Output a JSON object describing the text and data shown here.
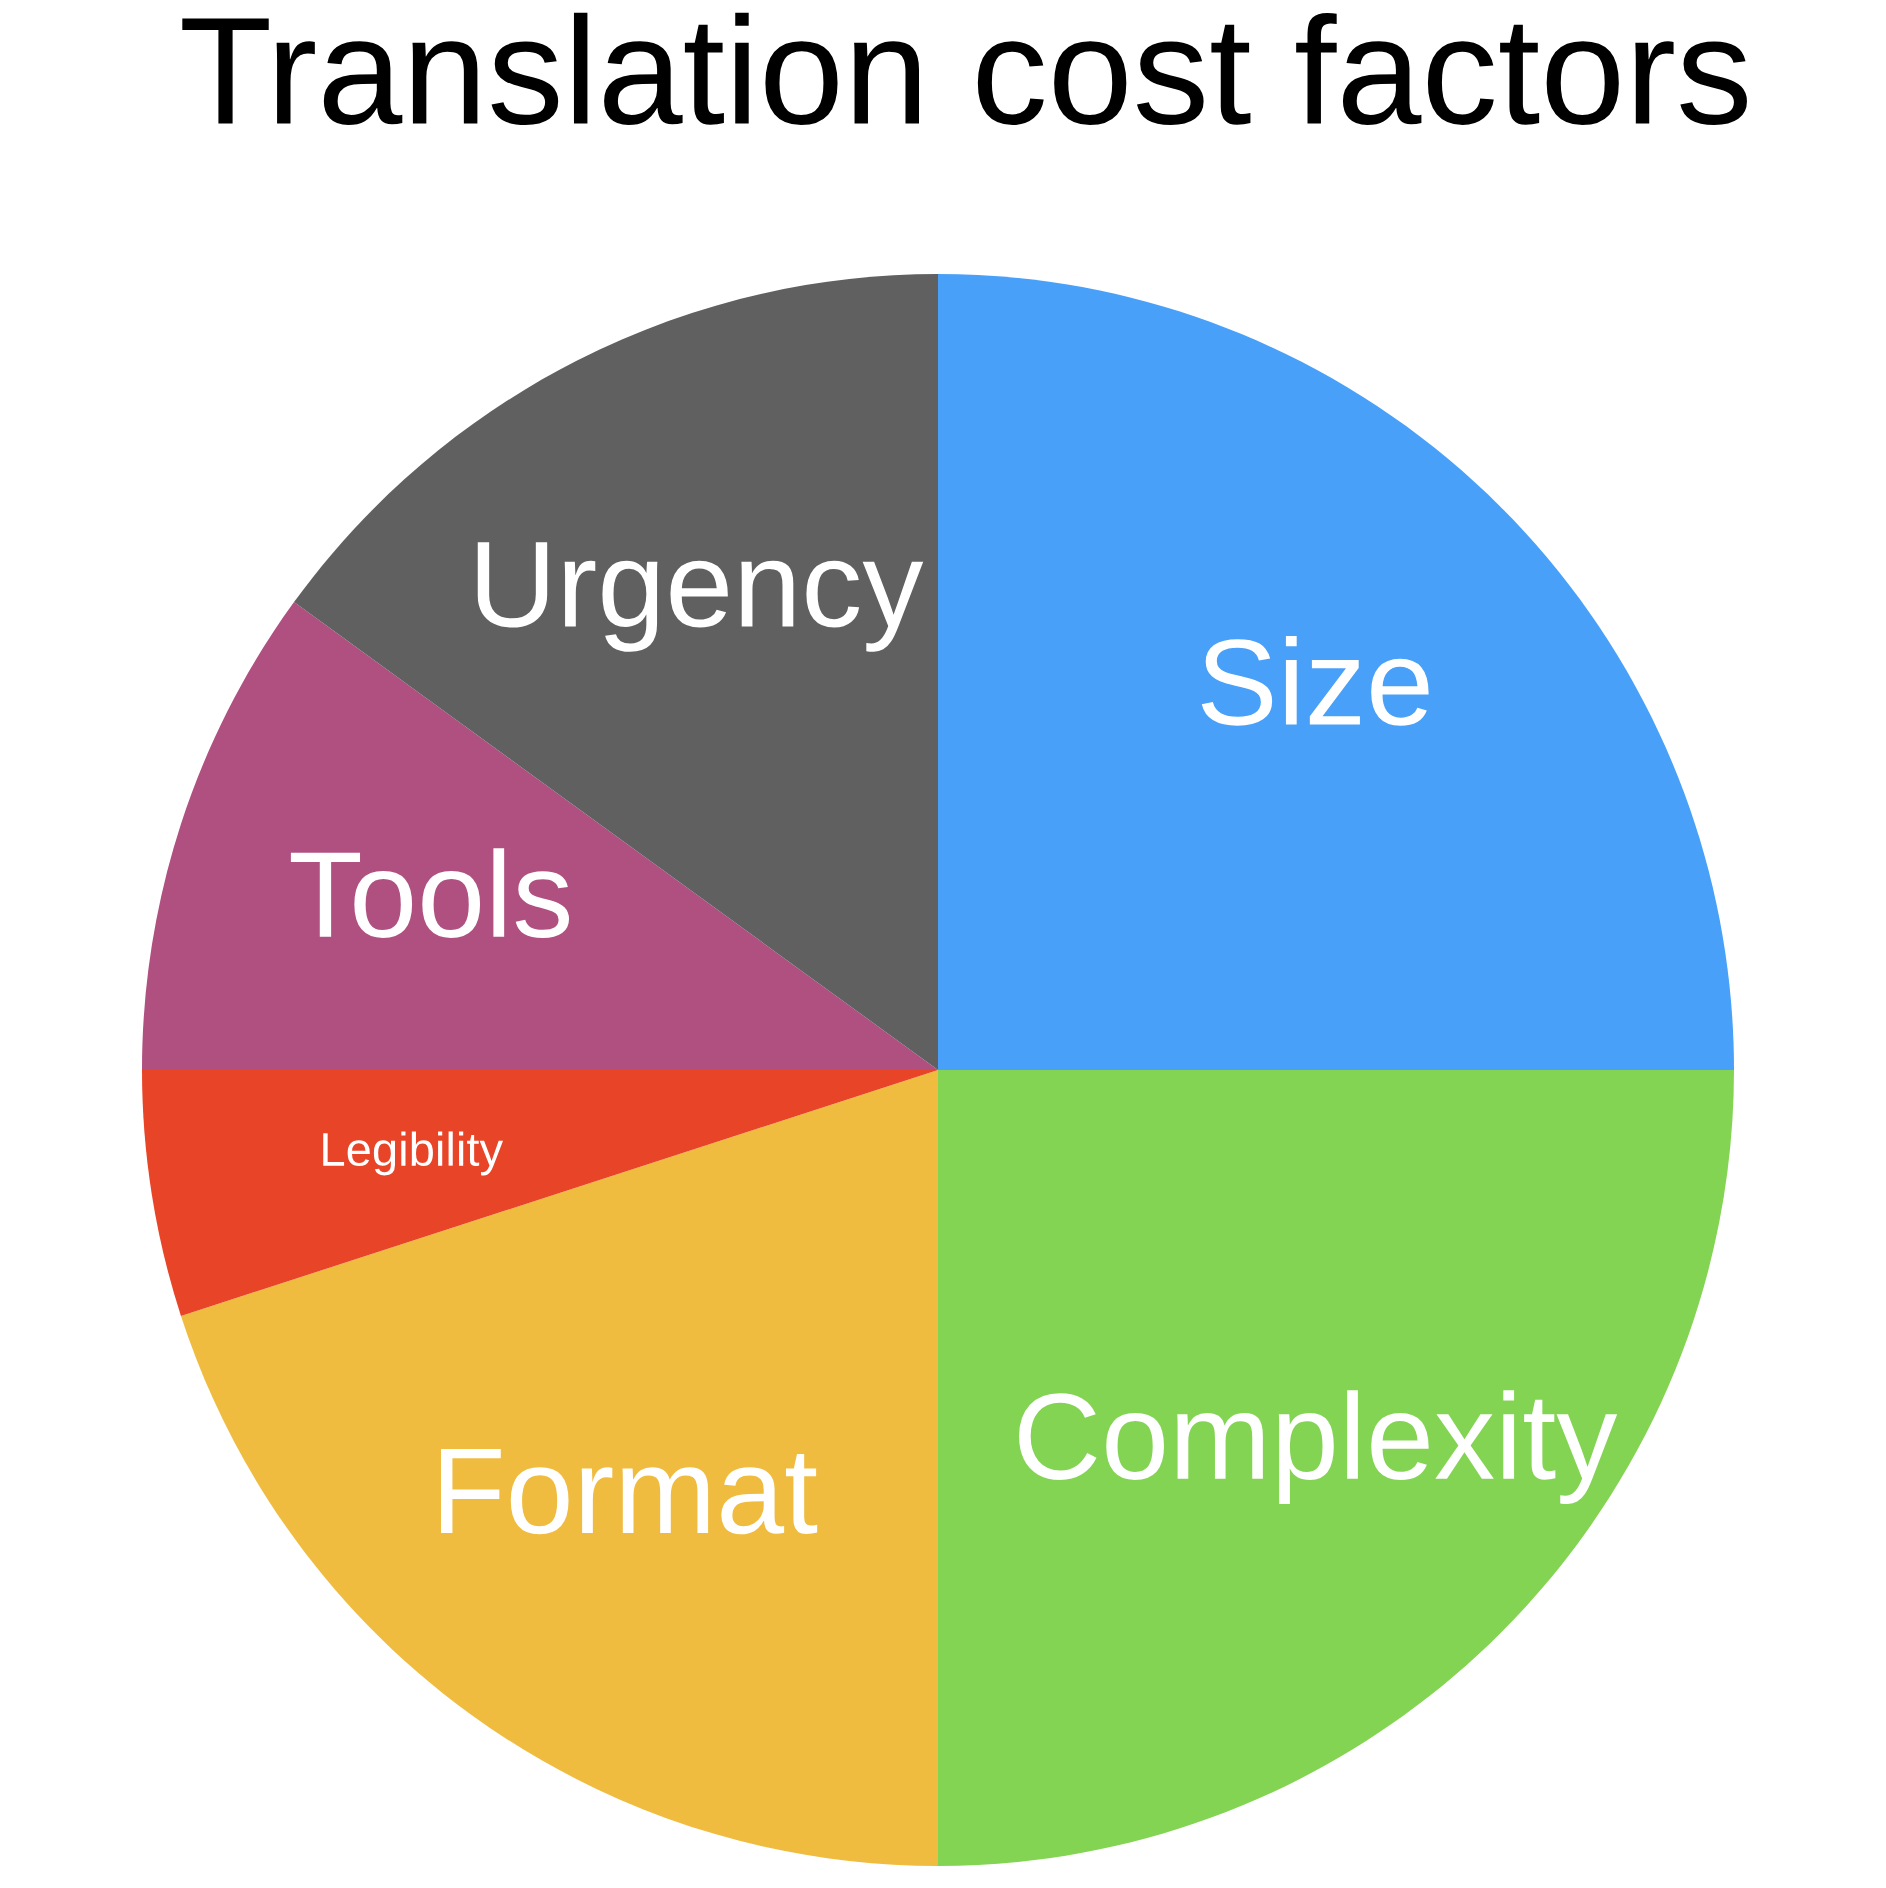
{
  "chart_data": {
    "type": "pie",
    "title": "Translation cost factors",
    "categories": [
      "Size",
      "Complexity",
      "Format",
      "Legibility",
      "Tools",
      "Urgency"
    ],
    "values": [
      25,
      25,
      20,
      5,
      10,
      15
    ],
    "colors": [
      "#48a0f8",
      "#84d454",
      "#f0bc40",
      "#e84428",
      "#b05080",
      "#606060"
    ],
    "legend": false
  }
}
